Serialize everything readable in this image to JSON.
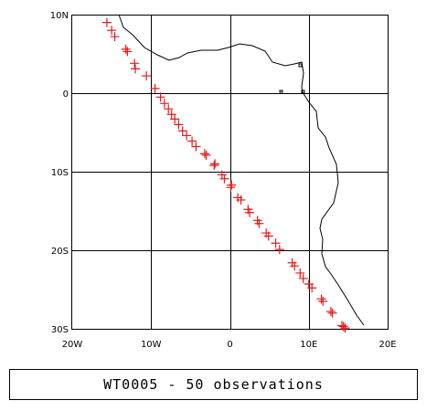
{
  "map": {
    "lon_range": [
      -20,
      20
    ],
    "lat_range": [
      -30,
      10
    ],
    "lon_ticks": [
      {
        "value": -20,
        "label": "20W"
      },
      {
        "value": -10,
        "label": "10W"
      },
      {
        "value": 0,
        "label": "0"
      },
      {
        "value": 10,
        "label": "10E"
      },
      {
        "value": 20,
        "label": "20E"
      }
    ],
    "lat_ticks": [
      {
        "value": 10,
        "label": "10N"
      },
      {
        "value": 0,
        "label": "0"
      },
      {
        "value": -10,
        "label": "10S"
      },
      {
        "value": -20,
        "label": "20S"
      },
      {
        "value": -30,
        "label": "30S"
      }
    ],
    "grid": true,
    "coastline": "Gulf of Guinea and West Africa coast",
    "marker": "plus",
    "marker_color": "#e41a1c"
  },
  "observations": [
    {
      "lon": -15.6,
      "lat": 9.0
    },
    {
      "lon": -15.0,
      "lat": 8.0
    },
    {
      "lon": -14.6,
      "lat": 7.2
    },
    {
      "lon": -13.2,
      "lat": 5.6
    },
    {
      "lon": -13.0,
      "lat": 5.3
    },
    {
      "lon": -12.1,
      "lat": 3.8
    },
    {
      "lon": -12.0,
      "lat": 3.1
    },
    {
      "lon": -10.6,
      "lat": 2.2
    },
    {
      "lon": -9.5,
      "lat": 0.6
    },
    {
      "lon": -8.8,
      "lat": -0.5
    },
    {
      "lon": -8.3,
      "lat": -1.3
    },
    {
      "lon": -7.8,
      "lat": -2.0
    },
    {
      "lon": -7.4,
      "lat": -2.7
    },
    {
      "lon": -7.0,
      "lat": -3.3
    },
    {
      "lon": -6.5,
      "lat": -4.0
    },
    {
      "lon": -6.0,
      "lat": -4.8
    },
    {
      "lon": -5.5,
      "lat": -5.4
    },
    {
      "lon": -4.8,
      "lat": -6.1
    },
    {
      "lon": -4.3,
      "lat": -6.8
    },
    {
      "lon": -3.2,
      "lat": -7.7
    },
    {
      "lon": -3.0,
      "lat": -7.9
    },
    {
      "lon": -2.0,
      "lat": -9.2
    },
    {
      "lon": -1.9,
      "lat": -9.0
    },
    {
      "lon": -1.0,
      "lat": -10.4
    },
    {
      "lon": -0.7,
      "lat": -10.9
    },
    {
      "lon": 0.1,
      "lat": -12.0
    },
    {
      "lon": 0.2,
      "lat": -11.7
    },
    {
      "lon": 1.0,
      "lat": -13.3
    },
    {
      "lon": 1.4,
      "lat": -13.6
    },
    {
      "lon": 2.3,
      "lat": -14.8
    },
    {
      "lon": 2.5,
      "lat": -15.2
    },
    {
      "lon": 3.5,
      "lat": -16.2
    },
    {
      "lon": 3.7,
      "lat": -16.6
    },
    {
      "lon": 4.6,
      "lat": -17.8
    },
    {
      "lon": 4.9,
      "lat": -18.2
    },
    {
      "lon": 5.8,
      "lat": -19.1
    },
    {
      "lon": 6.3,
      "lat": -19.9
    },
    {
      "lon": 7.9,
      "lat": -21.6
    },
    {
      "lon": 8.2,
      "lat": -22.0
    },
    {
      "lon": 8.9,
      "lat": -22.9
    },
    {
      "lon": 9.3,
      "lat": -23.6
    },
    {
      "lon": 10.0,
      "lat": -24.3
    },
    {
      "lon": 10.4,
      "lat": -24.8
    },
    {
      "lon": 11.6,
      "lat": -26.2
    },
    {
      "lon": 11.8,
      "lat": -26.5
    },
    {
      "lon": 12.8,
      "lat": -27.8
    },
    {
      "lon": 13.0,
      "lat": -28.0
    },
    {
      "lon": 14.4,
      "lat": -29.7
    },
    {
      "lon": 14.6,
      "lat": -29.9
    },
    {
      "lon": 14.2,
      "lat": -29.6
    }
  ],
  "caption": "WT0005 - 50 observations"
}
